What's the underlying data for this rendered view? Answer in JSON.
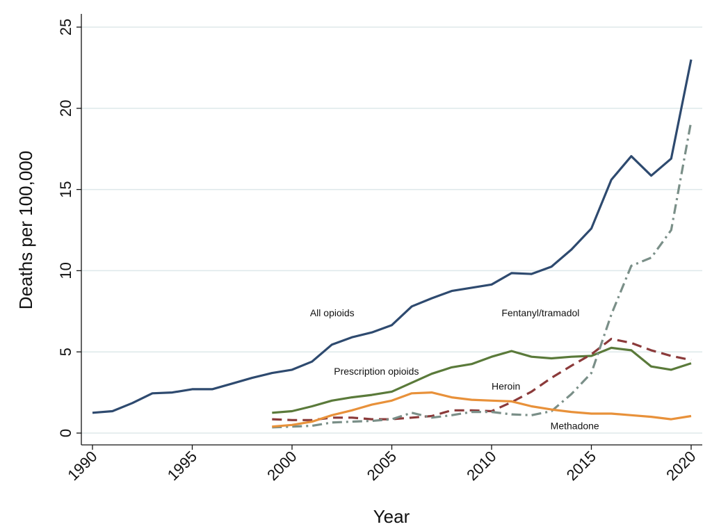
{
  "chart_data": {
    "type": "line",
    "title": "",
    "xlabel": "Year",
    "ylabel": "Deaths per 100,000",
    "xlim": [
      1990,
      2020
    ],
    "ylim": [
      0,
      25
    ],
    "xticks": [
      "1990",
      "1995",
      "2000",
      "2005",
      "2010",
      "2015",
      "2020"
    ],
    "yticks": [
      "0",
      "5",
      "10",
      "15",
      "20",
      "25"
    ],
    "grid": "horizontal",
    "legend": "none (inline labels)",
    "series": [
      {
        "name": "All opioids",
        "color": "#2e4a6f",
        "style": "solid",
        "x": [
          1990,
          1991,
          1992,
          1993,
          1994,
          1995,
          1996,
          1997,
          1998,
          1999,
          2000,
          2001,
          2002,
          2003,
          2004,
          2005,
          2006,
          2007,
          2008,
          2009,
          2010,
          2011,
          2012,
          2013,
          2014,
          2015,
          2016,
          2017,
          2018,
          2019,
          2020
        ],
        "values": [
          1.25,
          1.35,
          1.85,
          2.45,
          2.5,
          2.7,
          2.7,
          3.05,
          3.4,
          3.7,
          3.9,
          4.4,
          5.45,
          5.9,
          6.2,
          6.65,
          7.8,
          8.3,
          8.75,
          8.95,
          9.15,
          9.85,
          9.8,
          10.25,
          11.3,
          12.6,
          15.6,
          17.05,
          15.85,
          16.9,
          23.0
        ]
      },
      {
        "name": "Prescription opioids",
        "color": "#5a7a3a",
        "style": "solid",
        "x": [
          1999,
          2000,
          2001,
          2002,
          2003,
          2004,
          2005,
          2006,
          2007,
          2008,
          2009,
          2010,
          2011,
          2012,
          2013,
          2014,
          2015,
          2016,
          2017,
          2018,
          2019,
          2020
        ],
        "values": [
          1.25,
          1.35,
          1.65,
          2.0,
          2.2,
          2.35,
          2.55,
          3.1,
          3.65,
          4.05,
          4.25,
          4.7,
          5.05,
          4.7,
          4.6,
          4.7,
          4.75,
          5.25,
          5.1,
          4.1,
          3.9,
          4.3
        ]
      },
      {
        "name": "Heroin",
        "color": "#8b3a3a",
        "style": "dashed",
        "x": [
          1999,
          2000,
          2001,
          2002,
          2003,
          2004,
          2005,
          2006,
          2007,
          2008,
          2009,
          2010,
          2011,
          2012,
          2013,
          2014,
          2015,
          2016,
          2017,
          2018,
          2019,
          2020
        ],
        "values": [
          0.85,
          0.8,
          0.8,
          0.95,
          0.95,
          0.85,
          0.85,
          0.95,
          1.05,
          1.4,
          1.4,
          1.35,
          1.9,
          2.55,
          3.4,
          4.15,
          4.85,
          5.8,
          5.55,
          5.1,
          4.75,
          4.5
        ]
      },
      {
        "name": "Fentanyl/tramadol",
        "color": "#7a8f88",
        "style": "dashdot",
        "x": [
          1999,
          2000,
          2001,
          2002,
          2003,
          2004,
          2005,
          2006,
          2007,
          2008,
          2009,
          2010,
          2011,
          2012,
          2013,
          2014,
          2015,
          2016,
          2017,
          2018,
          2019,
          2020
        ],
        "values": [
          0.35,
          0.4,
          0.45,
          0.65,
          0.7,
          0.75,
          0.85,
          1.25,
          0.95,
          1.1,
          1.3,
          1.3,
          1.15,
          1.1,
          1.35,
          2.4,
          3.7,
          7.3,
          10.3,
          10.8,
          12.5,
          19.2
        ]
      },
      {
        "name": "Methadone",
        "color": "#e8913a",
        "style": "solid",
        "x": [
          1999,
          2000,
          2001,
          2002,
          2003,
          2004,
          2005,
          2006,
          2007,
          2008,
          2009,
          2010,
          2011,
          2012,
          2013,
          2014,
          2015,
          2016,
          2017,
          2018,
          2019,
          2020
        ],
        "values": [
          0.4,
          0.5,
          0.7,
          1.1,
          1.4,
          1.75,
          2.0,
          2.45,
          2.5,
          2.2,
          2.05,
          2.0,
          1.95,
          1.65,
          1.45,
          1.3,
          1.2,
          1.2,
          1.1,
          1.0,
          0.85,
          1.05
        ]
      }
    ],
    "annotations": [
      {
        "text": "All opioids",
        "x": 2000.9,
        "y": 7.4
      },
      {
        "text": "Fentanyl/tramadol",
        "x": 2010.5,
        "y": 7.4
      },
      {
        "text": "Prescription opioids",
        "x": 2002.1,
        "y": 3.8
      },
      {
        "text": "Heroin",
        "x": 2010.0,
        "y": 2.9
      },
      {
        "text": "Methadone",
        "x": 2012.95,
        "y": 0.45
      }
    ]
  }
}
